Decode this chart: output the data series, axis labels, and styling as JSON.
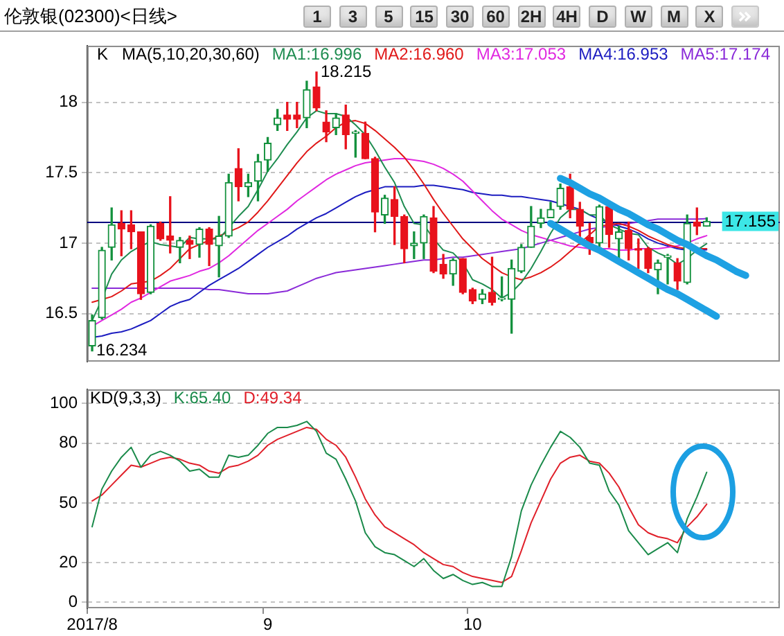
{
  "chart_data": [
    {
      "type": "candlestick",
      "title": "伦敦银(02300)<日线>",
      "legend_title": "MA(5,10,20,30,60)",
      "legend": "top",
      "grid": "y",
      "tick_labels": "y",
      "categories": [
        "2017/8",
        null,
        null,
        null,
        null,
        null,
        null,
        null,
        null,
        null,
        null,
        null,
        null,
        null,
        null,
        null,
        null,
        null,
        "9",
        null,
        null,
        null,
        null,
        null,
        null,
        null,
        null,
        null,
        null,
        null,
        null,
        null,
        null,
        null,
        null,
        null,
        null,
        null,
        null,
        "10",
        null,
        null,
        null,
        null,
        null,
        null,
        null,
        null,
        null,
        null,
        null,
        null,
        null,
        null,
        null,
        null,
        null,
        null,
        null,
        null,
        null,
        null,
        null,
        null,
        null,
        null,
        null,
        null,
        null,
        null,
        null
      ],
      "ylim": [
        16.16,
        18.4
      ],
      "yticks": [
        16.5,
        17,
        17.5,
        18
      ],
      "ohlc": [
        [
          16.27,
          16.49,
          16.234,
          16.45
        ],
        [
          16.47,
          16.97,
          16.46,
          16.95
        ],
        [
          16.97,
          17.25,
          16.88,
          17.13
        ],
        [
          17.14,
          17.23,
          16.91,
          17.1
        ],
        [
          17.13,
          17.23,
          16.96,
          17.08
        ],
        [
          17.08,
          17.08,
          16.6,
          16.64
        ],
        [
          16.65,
          17.13,
          16.64,
          17.12
        ],
        [
          17.14,
          17.15,
          17.02,
          17.03
        ],
        [
          17.05,
          17.33,
          16.93,
          17.02
        ],
        [
          16.97,
          17.04,
          16.86,
          17.02
        ],
        [
          17.02,
          17.05,
          16.89,
          16.99
        ],
        [
          16.99,
          17.11,
          16.9,
          17.1
        ],
        [
          17.1,
          17.11,
          16.84,
          16.99
        ],
        [
          16.98,
          17.19,
          16.76,
          17.05
        ],
        [
          17.05,
          17.49,
          17.04,
          17.43
        ],
        [
          17.53,
          17.67,
          17.3,
          17.4
        ],
        [
          17.4,
          17.49,
          17.33,
          17.43
        ],
        [
          17.44,
          17.63,
          17.3,
          17.58
        ],
        [
          17.59,
          17.75,
          17.51,
          17.71
        ],
        [
          17.84,
          17.95,
          17.8,
          17.89
        ],
        [
          17.91,
          18.0,
          17.8,
          17.88
        ],
        [
          17.91,
          18.0,
          17.82,
          17.88
        ],
        [
          17.89,
          18.15,
          17.82,
          18.09
        ],
        [
          18.11,
          18.215,
          17.94,
          17.96
        ],
        [
          17.86,
          17.94,
          17.72,
          17.79
        ],
        [
          17.82,
          17.92,
          17.77,
          17.89
        ],
        [
          17.91,
          17.98,
          17.67,
          17.77
        ],
        [
          17.78,
          17.8,
          17.61,
          17.79
        ],
        [
          17.78,
          17.86,
          17.6,
          17.6
        ],
        [
          17.6,
          17.61,
          17.08,
          17.22
        ],
        [
          17.2,
          17.34,
          17.14,
          17.32
        ],
        [
          17.31,
          17.4,
          16.99,
          17.19
        ],
        [
          17.19,
          17.2,
          16.86,
          16.96
        ],
        [
          16.98,
          17.08,
          16.89,
          17.0
        ],
        [
          17.0,
          17.2,
          16.89,
          17.19
        ],
        [
          17.18,
          17.26,
          16.79,
          16.8
        ],
        [
          16.85,
          16.92,
          16.75,
          16.78
        ],
        [
          16.78,
          16.89,
          16.7,
          16.88
        ],
        [
          16.89,
          16.89,
          16.64,
          16.65
        ],
        [
          16.67,
          16.68,
          16.57,
          16.59
        ],
        [
          16.6,
          16.67,
          16.57,
          16.64
        ],
        [
          16.65,
          16.9,
          16.56,
          16.58
        ],
        [
          16.6,
          16.76,
          16.59,
          16.61
        ],
        [
          16.6,
          16.88,
          16.36,
          16.82
        ],
        [
          16.8,
          16.99,
          16.79,
          16.97
        ],
        [
          16.97,
          17.26,
          16.97,
          17.12
        ],
        [
          17.14,
          17.24,
          17.11,
          17.18
        ],
        [
          17.18,
          17.29,
          17.18,
          17.24
        ],
        [
          17.26,
          17.42,
          17.24,
          17.39
        ],
        [
          17.4,
          17.49,
          17.18,
          17.24
        ],
        [
          17.24,
          17.29,
          16.99,
          17.12
        ],
        [
          17.04,
          17.14,
          16.92,
          17.0
        ],
        [
          17.0,
          17.27,
          16.97,
          17.26
        ],
        [
          17.26,
          17.27,
          16.97,
          17.06
        ],
        [
          17.03,
          17.12,
          16.89,
          17.08
        ],
        [
          17.09,
          17.15,
          16.88,
          16.96
        ],
        [
          16.96,
          17.03,
          16.82,
          16.95
        ],
        [
          16.96,
          16.97,
          16.79,
          16.82
        ],
        [
          16.81,
          16.88,
          16.64,
          16.86
        ],
        [
          16.9,
          16.92,
          16.71,
          16.9
        ],
        [
          16.86,
          16.89,
          16.67,
          16.73
        ],
        [
          16.72,
          17.2,
          16.71,
          17.14
        ],
        [
          17.15,
          17.25,
          17.06,
          17.12
        ],
        [
          17.12,
          17.18,
          17.12,
          17.155
        ],
        null,
        null,
        null,
        null,
        null,
        null,
        null
      ],
      "colors": [
        "#13913d",
        "#13913d",
        "#13913d",
        "#e8121c",
        "#e8121c",
        "#e8121c",
        "#13913d",
        "#e8121c",
        "#e8121c",
        "#13913d",
        "#e8121c",
        "#13913d",
        "#e8121c",
        "#13913d",
        "#13913d",
        "#e8121c",
        "#13913d",
        "#13913d",
        "#13913d",
        "#13913d",
        "#e8121c",
        "#e8121c",
        "#13913d",
        "#e8121c",
        "#e8121c",
        "#13913d",
        "#e8121c",
        "#13913d",
        "#e8121c",
        "#e8121c",
        "#13913d",
        "#e8121c",
        "#e8121c",
        "#13913d",
        "#13913d",
        "#e8121c",
        "#e8121c",
        "#13913d",
        "#e8121c",
        "#e8121c",
        "#13913d",
        "#e8121c",
        "#13913d",
        "#13913d",
        "#13913d",
        "#13913d",
        "#13913d",
        "#13913d",
        "#13913d",
        "#e8121c",
        "#e8121c",
        "#e8121c",
        "#13913d",
        "#e8121c",
        "#13913d",
        "#e8121c",
        "#e8121c",
        "#e8121c",
        "#13913d",
        "#13913d",
        "#e8121c",
        "#13913d",
        "#e8121c",
        "#13913d",
        null,
        null,
        null,
        null,
        null,
        null,
        null
      ],
      "series": [
        {
          "type": "line",
          "name": "MA1:16.996",
          "color": "#1e8c50",
          "values": [
            16.45,
            16.6,
            16.78,
            16.88,
            16.94,
            16.98,
            17.01,
            16.99,
            16.98,
            16.97,
            17.04,
            17.03,
            17.03,
            17.03,
            17.11,
            17.19,
            17.26,
            17.38,
            17.51,
            17.6,
            17.7,
            17.79,
            17.89,
            17.94,
            17.92,
            17.92,
            17.9,
            17.84,
            17.77,
            17.66,
            17.54,
            17.43,
            17.26,
            17.14,
            17.13,
            17.03,
            16.95,
            16.93,
            16.86,
            16.74,
            16.71,
            16.67,
            16.61,
            16.65,
            16.72,
            16.82,
            16.94,
            17.07,
            17.18,
            17.24,
            17.24,
            17.2,
            17.2,
            17.13,
            17.1,
            17.07,
            17.06,
            16.97,
            16.93,
            16.9,
            16.85,
            16.89,
            16.95,
            16.996,
            null,
            null,
            null,
            null,
            null,
            null,
            null
          ]
        },
        {
          "type": "line",
          "name": "MA2:16.960",
          "color": "#e01818",
          "values": [
            16.58,
            16.6,
            16.62,
            16.66,
            16.71,
            16.72,
            16.73,
            16.77,
            16.82,
            16.89,
            16.96,
            16.99,
            17.02,
            17.05,
            17.08,
            17.11,
            17.15,
            17.22,
            17.3,
            17.39,
            17.48,
            17.57,
            17.65,
            17.71,
            17.76,
            17.82,
            17.86,
            17.87,
            17.85,
            17.8,
            17.74,
            17.68,
            17.61,
            17.52,
            17.42,
            17.31,
            17.21,
            17.12,
            17.03,
            16.96,
            16.89,
            16.84,
            16.79,
            16.76,
            16.74,
            16.76,
            16.79,
            16.83,
            16.88,
            16.94,
            17.0,
            17.06,
            17.12,
            17.13,
            17.14,
            17.12,
            17.09,
            17.05,
            17.02,
            16.99,
            16.97,
            16.96,
            16.96,
            16.96,
            null,
            null,
            null,
            null,
            null,
            null,
            null
          ]
        },
        {
          "type": "line",
          "name": "MA3:17.053",
          "color": "#e028e0",
          "values": [
            16.41,
            16.45,
            16.49,
            16.53,
            16.58,
            16.61,
            16.65,
            16.69,
            16.73,
            16.75,
            16.77,
            16.8,
            16.82,
            16.86,
            16.91,
            16.97,
            17.03,
            17.09,
            17.14,
            17.19,
            17.24,
            17.3,
            17.35,
            17.4,
            17.45,
            17.49,
            17.52,
            17.55,
            17.57,
            17.58,
            17.59,
            17.6,
            17.6,
            17.59,
            17.58,
            17.56,
            17.53,
            17.49,
            17.44,
            17.37,
            17.3,
            17.23,
            17.17,
            17.13,
            17.09,
            17.06,
            17.04,
            17.02,
            17.0,
            16.98,
            16.97,
            16.96,
            16.96,
            16.96,
            16.95,
            16.95,
            16.96,
            16.96,
            16.96,
            16.97,
            16.98,
            17.0,
            17.03,
            17.053,
            null,
            null,
            null,
            null,
            null,
            null,
            null
          ]
        },
        {
          "type": "line",
          "name": "MA4:16.953",
          "color": "#1c1cc0",
          "values": [
            16.33,
            16.34,
            16.36,
            16.37,
            16.39,
            16.42,
            16.45,
            16.5,
            16.55,
            16.58,
            16.6,
            16.65,
            16.7,
            16.74,
            16.78,
            16.82,
            16.87,
            16.92,
            16.97,
            17.01,
            17.05,
            17.1,
            17.14,
            17.18,
            17.21,
            17.25,
            17.29,
            17.33,
            17.36,
            17.38,
            17.4,
            17.4,
            17.4,
            17.4,
            17.41,
            17.41,
            17.4,
            17.39,
            17.38,
            17.36,
            17.35,
            17.34,
            17.34,
            17.33,
            17.33,
            17.32,
            17.31,
            17.3,
            17.28,
            17.26,
            17.24,
            17.2,
            17.17,
            17.15,
            17.12,
            17.1,
            17.07,
            17.03,
            17.0,
            16.98,
            16.96,
            16.95,
            16.95,
            16.953,
            null,
            null,
            null,
            null,
            null,
            null,
            null
          ]
        },
        {
          "type": "line",
          "name": "MA5:17.174",
          "color": "#8a2ad8",
          "values": [
            16.68,
            16.68,
            16.68,
            16.68,
            16.68,
            16.68,
            16.68,
            16.68,
            16.68,
            16.68,
            16.68,
            16.68,
            16.67,
            16.67,
            16.66,
            16.65,
            16.64,
            16.64,
            16.64,
            16.65,
            16.66,
            16.69,
            16.72,
            16.75,
            16.77,
            16.79,
            16.8,
            16.81,
            16.82,
            16.83,
            16.84,
            16.85,
            16.86,
            16.87,
            16.88,
            16.88,
            16.89,
            16.9,
            16.9,
            16.91,
            16.92,
            16.93,
            16.94,
            16.95,
            16.96,
            16.98,
            17.0,
            17.02,
            17.04,
            17.06,
            17.08,
            17.1,
            17.11,
            17.12,
            17.13,
            17.14,
            17.15,
            17.16,
            17.17,
            17.17,
            17.17,
            17.17,
            17.17,
            17.174,
            null,
            null,
            null,
            null,
            null,
            null,
            null
          ]
        },
        {
          "type": "line",
          "color": "#1ea1e3",
          "values": [
            null,
            null,
            null,
            null,
            null,
            null,
            null,
            null,
            null,
            null,
            null,
            null,
            null,
            null,
            null,
            null,
            null,
            null,
            null,
            null,
            null,
            null,
            null,
            null,
            null,
            null,
            null,
            null,
            null,
            null,
            null,
            null,
            null,
            null,
            null,
            null,
            null,
            null,
            null,
            null,
            null,
            null,
            null,
            null,
            null,
            null,
            null,
            null,
            17.46,
            17.43,
            17.39,
            17.35,
            17.32,
            17.28,
            17.24,
            17.21,
            17.17,
            17.13,
            17.1,
            17.06,
            17.02,
            16.99,
            16.95,
            16.91,
            16.88,
            16.84,
            16.8,
            16.77,
            null,
            null,
            null
          ]
        },
        {
          "type": "line",
          "color": "#1ea1e3",
          "values": [
            null,
            null,
            null,
            null,
            null,
            null,
            null,
            null,
            null,
            null,
            null,
            null,
            null,
            null,
            null,
            null,
            null,
            null,
            null,
            null,
            null,
            null,
            null,
            null,
            null,
            null,
            null,
            null,
            null,
            null,
            null,
            null,
            null,
            null,
            null,
            null,
            null,
            null,
            null,
            null,
            null,
            null,
            null,
            null,
            null,
            null,
            null,
            17.14,
            17.1,
            17.06,
            17.02,
            16.98,
            16.95,
            16.91,
            16.87,
            16.83,
            16.79,
            16.75,
            16.71,
            16.67,
            16.64,
            16.6,
            16.56,
            16.52,
            16.48,
            null,
            null,
            null,
            null,
            null,
            null
          ]
        }
      ],
      "ref_lines": [
        {
          "axis": "y",
          "value": 17.155,
          "label": "17.155",
          "color": "#000080"
        }
      ],
      "annotations": [
        "K",
        "18.215",
        "16.234",
        "1",
        "3",
        "5",
        "15",
        "30",
        "60",
        "2H",
        "4H",
        "D",
        "W",
        "M",
        "X"
      ]
    },
    {
      "type": "line",
      "legend_title": "KD(9,3,3)",
      "legend": "top left",
      "grid": "y",
      "categories": [
        "2017/8",
        null,
        null,
        null,
        null,
        null,
        null,
        null,
        null,
        null,
        null,
        null,
        null,
        null,
        null,
        null,
        null,
        null,
        "9",
        null,
        null,
        null,
        null,
        null,
        null,
        null,
        null,
        null,
        null,
        null,
        null,
        null,
        null,
        null,
        null,
        null,
        null,
        null,
        null,
        "10",
        null,
        null,
        null,
        null,
        null,
        null,
        null,
        null,
        null,
        null,
        null,
        null,
        null,
        null,
        null,
        null,
        null,
        null,
        null,
        null,
        null,
        null,
        null,
        null,
        null,
        null,
        null,
        null,
        null,
        null,
        null
      ],
      "ylim": [
        -3,
        107
      ],
      "yticks": [
        0,
        20,
        50,
        80,
        100
      ],
      "series": [
        {
          "name": "K:65.40",
          "color": "#1a8a4a",
          "values": [
            38,
            57,
            66,
            73,
            78,
            68,
            74,
            76,
            74,
            71,
            66,
            67,
            63,
            63,
            74,
            73,
            74,
            79,
            85,
            88,
            88,
            89,
            91,
            86,
            75,
            72,
            62,
            51,
            35,
            28,
            25,
            24,
            21,
            18,
            22,
            16,
            12,
            14,
            11,
            9,
            10,
            8,
            8,
            23,
            46,
            59,
            69,
            78,
            86,
            83,
            78,
            70,
            69,
            56,
            49,
            36,
            30,
            24,
            27,
            30,
            25,
            42,
            53,
            65.4,
            null,
            null,
            null,
            null,
            null,
            null,
            null
          ]
        },
        {
          "name": "D:49.34",
          "color": "#e0202a",
          "values": [
            51,
            54,
            59,
            64,
            69,
            68,
            70,
            72,
            73,
            72,
            70,
            69,
            66,
            65,
            68,
            69,
            71,
            74,
            79,
            82,
            84,
            86,
            88,
            87,
            82,
            79,
            73,
            63,
            52,
            44,
            38,
            35,
            32,
            29,
            25,
            22,
            19,
            18,
            15,
            13,
            12,
            11,
            10,
            13,
            26,
            40,
            51,
            62,
            70,
            73,
            74,
            71,
            70,
            65,
            58,
            48,
            39,
            35,
            33,
            32,
            30,
            38,
            43,
            49.34,
            null,
            null,
            null,
            null,
            null,
            null,
            null
          ]
        }
      ]
    }
  ]
}
